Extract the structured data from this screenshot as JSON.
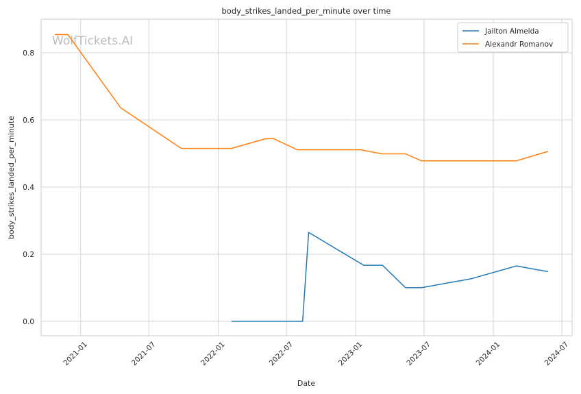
{
  "chart_data": {
    "type": "line",
    "title": "body_strikes_landed_per_minute over time",
    "xlabel": "Date",
    "ylabel": "body_strikes_landed_per_minute",
    "watermark": "WolfTickets.AI",
    "x_ticks": [
      "2021-01",
      "2021-07",
      "2022-01",
      "2022-07",
      "2023-01",
      "2023-07",
      "2024-01",
      "2024-07"
    ],
    "y_ticks": [
      "0.0",
      "0.2",
      "0.4",
      "0.6",
      "0.8"
    ],
    "xlim": [
      "2020-09-18",
      "2024-07-28"
    ],
    "ylim": [
      -0.043,
      0.9
    ],
    "grid": true,
    "legend_position": "top-right",
    "series": [
      {
        "name": "Jailton Almeida",
        "color": "#1f77b4",
        "points": [
          {
            "x": "2022-02-05",
            "y": 0.0
          },
          {
            "x": "2022-08-13",
            "y": 0.0
          },
          {
            "x": "2022-08-29",
            "y": 0.265
          },
          {
            "x": "2023-01-22",
            "y": 0.167
          },
          {
            "x": "2023-03-13",
            "y": 0.167
          },
          {
            "x": "2023-05-13",
            "y": 0.1
          },
          {
            "x": "2023-06-24",
            "y": 0.1
          },
          {
            "x": "2023-11-04",
            "y": 0.127
          },
          {
            "x": "2024-03-02",
            "y": 0.165
          },
          {
            "x": "2024-05-25",
            "y": 0.148
          }
        ]
      },
      {
        "name": "Alexandr Romanov",
        "color": "#ff7f0e",
        "points": [
          {
            "x": "2020-10-24",
            "y": 0.854
          },
          {
            "x": "2020-11-28",
            "y": 0.854
          },
          {
            "x": "2021-04-17",
            "y": 0.636
          },
          {
            "x": "2021-09-25",
            "y": 0.515
          },
          {
            "x": "2022-02-05",
            "y": 0.515
          },
          {
            "x": "2022-05-07",
            "y": 0.544
          },
          {
            "x": "2022-05-28",
            "y": 0.544
          },
          {
            "x": "2022-07-30",
            "y": 0.511
          },
          {
            "x": "2023-01-14",
            "y": 0.511
          },
          {
            "x": "2023-03-11",
            "y": 0.499
          },
          {
            "x": "2023-05-13",
            "y": 0.499
          },
          {
            "x": "2023-06-24",
            "y": 0.478
          },
          {
            "x": "2024-03-02",
            "y": 0.478
          },
          {
            "x": "2024-05-25",
            "y": 0.506
          }
        ]
      }
    ]
  }
}
